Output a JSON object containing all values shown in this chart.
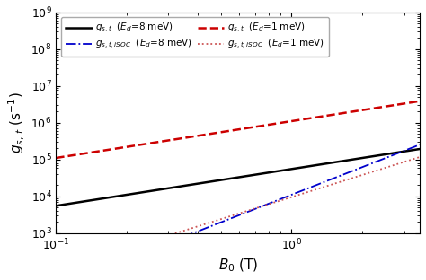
{
  "title": "",
  "xlabel": "$B_0$ (T)",
  "ylabel": "$g_{s,\\,t}$ (s$^{-1}$)",
  "xlim": [
    0.1,
    3.5
  ],
  "ylim": [
    1000.0,
    1000000000.0
  ],
  "lines": [
    {
      "label": "$g_{s,t}$  ($E_d$=8 meV)",
      "color": "#000000",
      "linestyle": "solid",
      "linewidth": 1.8,
      "A": 55000.0,
      "slope": 1.0
    },
    {
      "label": "$g_{s,t}$  ($E_d$=1 meV)",
      "color": "#cc0000",
      "linestyle": "dashed",
      "linewidth": 1.8,
      "A": 1100000.0,
      "slope": 1.0
    },
    {
      "label": "$g_{s,t,iSOC}$  ($E_d$=8 meV)",
      "color": "#0000cc",
      "linestyle": "dashdot",
      "linewidth": 1.3,
      "A": 11000.0,
      "slope": 2.5
    },
    {
      "label": "$g_{s,t,iSOC}$  ($E_d$=1 meV)",
      "color": "#cc5555",
      "linestyle": "dotted",
      "linewidth": 1.3,
      "A": 9500.0,
      "slope": 2.0
    }
  ],
  "legend_row1": [
    0,
    2
  ],
  "legend_row2": [
    1,
    3
  ],
  "legend_labels_row1": [
    "$g_{s,t}$  ($E_d$=8 meV)",
    "$g_{s,t,iSOC}$  ($E_d$=8 meV)"
  ],
  "legend_labels_row2": [
    "$g_{s,t}$  ($E_d$=1 meV)",
    "$g_{s,t,iSOC}$  ($E_d$=1 meV)"
  ]
}
